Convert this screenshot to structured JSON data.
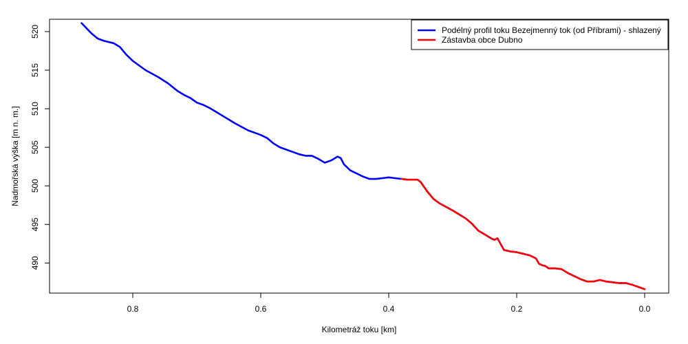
{
  "chart_data": {
    "type": "line",
    "title": "",
    "xlabel": "Kilometráž toku [km]",
    "ylabel": "Nadmořská výška [m n. m.]",
    "x_reversed": true,
    "xlim": [
      0.0,
      0.9
    ],
    "ylim": [
      486.1,
      521.6
    ],
    "x_ticks": [
      "0.8",
      "0.6",
      "0.4",
      "0.2",
      "0.0"
    ],
    "x_tick_values": [
      0.8,
      0.6,
      0.4,
      0.2,
      0.0
    ],
    "y_ticks": [
      "490",
      "495",
      "500",
      "505",
      "510",
      "515",
      "520"
    ],
    "y_tick_values": [
      490,
      495,
      500,
      505,
      510,
      515,
      520
    ],
    "grid": false,
    "legend_position": "top-right",
    "series": [
      {
        "name": "Podélný profil toku Bezejmenný tok (od Příbrami) - shlazený",
        "color": "#0000ff",
        "x": [
          0.88,
          0.865,
          0.855,
          0.845,
          0.83,
          0.82,
          0.81,
          0.8,
          0.78,
          0.76,
          0.745,
          0.73,
          0.72,
          0.71,
          0.7,
          0.69,
          0.68,
          0.66,
          0.64,
          0.62,
          0.6,
          0.59,
          0.58,
          0.57,
          0.56,
          0.55,
          0.54,
          0.53,
          0.52,
          0.51,
          0.5,
          0.49,
          0.48,
          0.475,
          0.47,
          0.46,
          0.45,
          0.44,
          0.43,
          0.42,
          0.41,
          0.4,
          0.39,
          0.38,
          0.37,
          0.36,
          0.355,
          0.35,
          0.34,
          0.33,
          0.32,
          0.3,
          0.29,
          0.28,
          0.27,
          0.26,
          0.25,
          0.24,
          0.235,
          0.23,
          0.22,
          0.21,
          0.2,
          0.19,
          0.18,
          0.17,
          0.165,
          0.16,
          0.155,
          0.15,
          0.14,
          0.13,
          0.12,
          0.11,
          0.1,
          0.09,
          0.08,
          0.07,
          0.06,
          0.05,
          0.04,
          0.03,
          0.02,
          0.01,
          0.0
        ],
        "y": [
          521.1,
          519.8,
          519.1,
          518.8,
          518.5,
          518.0,
          517.0,
          516.2,
          515.0,
          514.1,
          513.3,
          512.3,
          511.8,
          511.4,
          510.8,
          510.5,
          510.1,
          509.1,
          508.1,
          507.2,
          506.6,
          506.2,
          505.5,
          505.0,
          504.7,
          504.4,
          504.1,
          503.9,
          503.9,
          503.5,
          503.0,
          503.3,
          503.8,
          503.6,
          502.8,
          502.0,
          501.6,
          501.2,
          500.9,
          500.9,
          501.0,
          501.1,
          501.0,
          500.9,
          500.8,
          500.8,
          500.8,
          500.5,
          499.3,
          498.3,
          497.7,
          496.8,
          496.3,
          495.8,
          495.1,
          494.2,
          493.7,
          493.2,
          493.0,
          493.2,
          491.7,
          491.5,
          491.4,
          491.2,
          491.0,
          490.6,
          489.9,
          489.7,
          489.6,
          489.3,
          489.3,
          489.2,
          488.7,
          488.3,
          487.9,
          487.6,
          487.6,
          487.8,
          487.6,
          487.5,
          487.4,
          487.4,
          487.2,
          486.9,
          486.6
        ]
      },
      {
        "name": "Zástavba obce Dubno",
        "color": "#ff0000",
        "x": [
          0.38,
          0.37,
          0.36,
          0.355,
          0.35,
          0.34,
          0.33,
          0.32,
          0.3,
          0.29,
          0.28,
          0.27,
          0.26,
          0.25,
          0.24,
          0.235,
          0.23,
          0.22,
          0.21,
          0.2,
          0.19,
          0.18,
          0.17,
          0.165,
          0.16,
          0.155,
          0.15,
          0.14,
          0.13,
          0.12,
          0.11,
          0.1,
          0.09,
          0.08,
          0.07,
          0.06,
          0.05,
          0.04,
          0.03,
          0.02,
          0.01,
          0.0
        ],
        "y": [
          500.9,
          500.8,
          500.8,
          500.8,
          500.5,
          499.3,
          498.3,
          497.7,
          496.8,
          496.3,
          495.8,
          495.1,
          494.2,
          493.7,
          493.2,
          493.0,
          493.2,
          491.7,
          491.5,
          491.4,
          491.2,
          491.0,
          490.6,
          489.9,
          489.7,
          489.6,
          489.3,
          489.3,
          489.2,
          488.7,
          488.3,
          487.9,
          487.6,
          487.6,
          487.8,
          487.6,
          487.5,
          487.4,
          487.4,
          487.2,
          486.9,
          486.6
        ]
      }
    ]
  }
}
